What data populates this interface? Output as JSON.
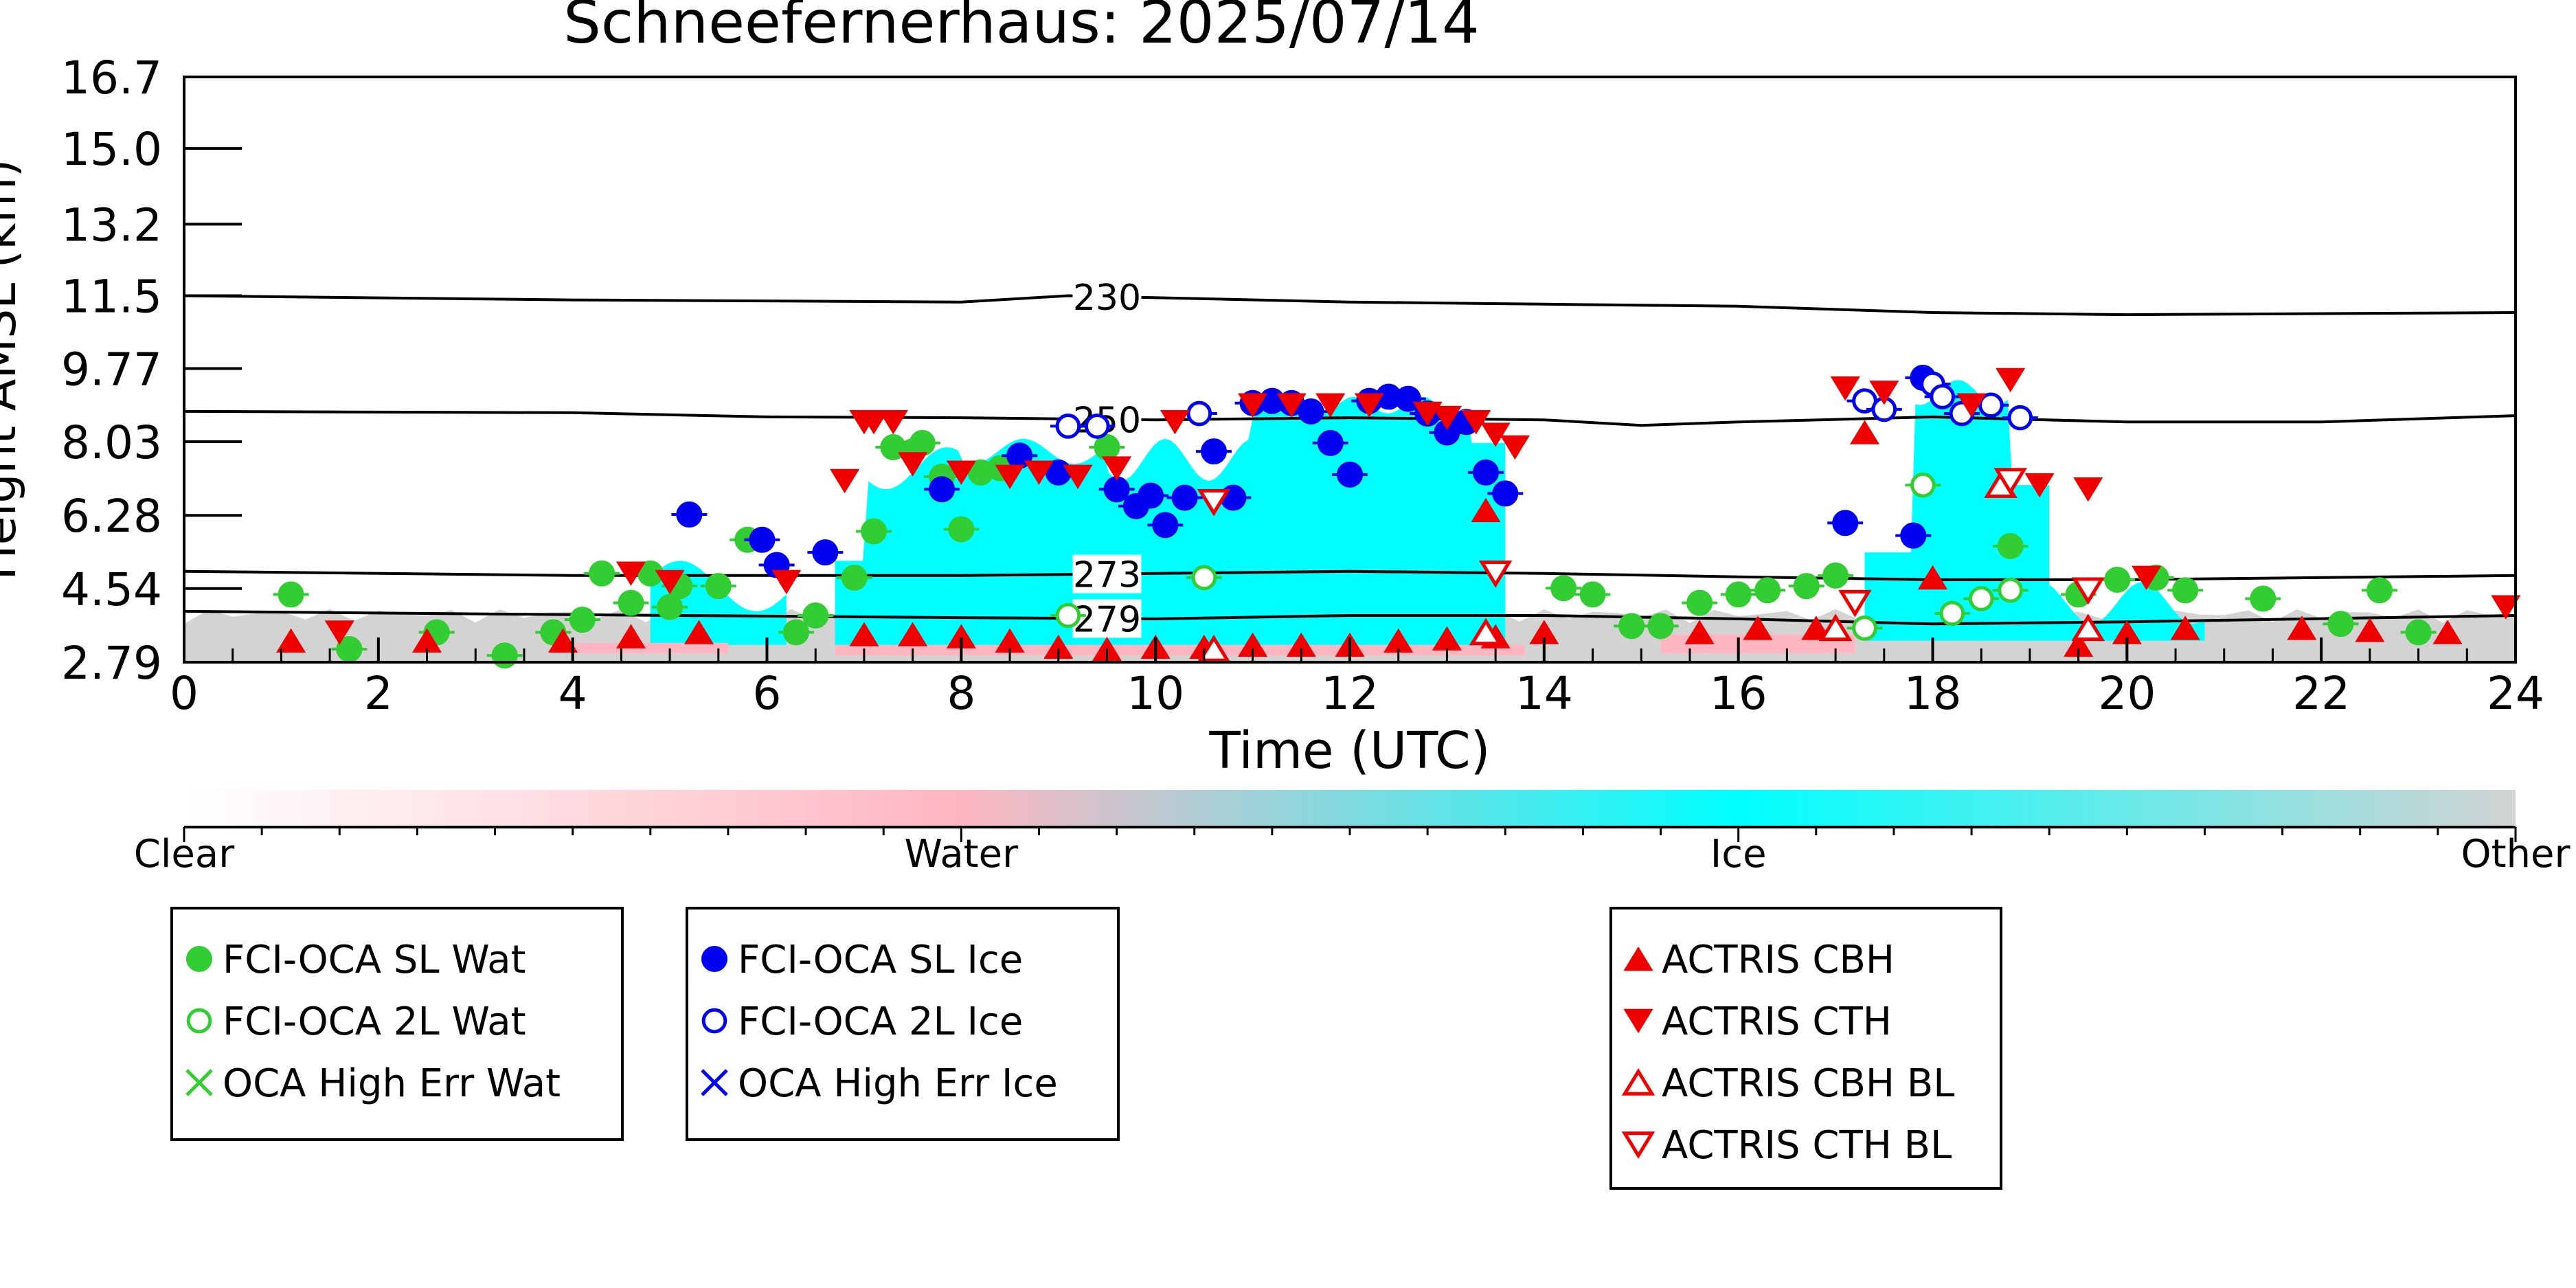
{
  "chart_data": {
    "type": "scatter",
    "title": "Schneefernerhaus: 2025/07/14",
    "xlabel": "Time (UTC)",
    "ylabel": "Height AMSL (km)",
    "xlim": [
      0,
      24
    ],
    "ylim": [
      2.79,
      16.7
    ],
    "x_ticks": [
      "0",
      "2",
      "4",
      "6",
      "8",
      "10",
      "12",
      "14",
      "16",
      "18",
      "20",
      "22",
      "24"
    ],
    "y_ticks": [
      "2.79",
      "4.54",
      "6.28",
      "8.03",
      "9.77",
      "11.5",
      "13.2",
      "15.0",
      "16.7"
    ],
    "colorbar": {
      "labels": [
        "Clear",
        "Water",
        "Ice",
        "Other"
      ],
      "colors": [
        "#ffffff",
        "#ffb6c1",
        "#00ffff",
        "#d3d3d3"
      ]
    },
    "isotherms": [
      {
        "label": "230",
        "x": [
          0,
          4,
          8,
          9.1,
          12,
          14,
          16,
          18,
          20,
          24
        ],
        "y": [
          11.5,
          11.4,
          11.35,
          11.5,
          11.35,
          11.3,
          11.25,
          11.1,
          11.05,
          11.1
        ]
      },
      {
        "label": "250",
        "x": [
          0,
          4,
          6,
          8,
          10,
          12,
          14,
          15,
          16,
          18,
          20,
          22,
          24
        ],
        "y": [
          8.75,
          8.72,
          8.62,
          8.6,
          8.55,
          8.6,
          8.55,
          8.42,
          8.5,
          8.62,
          8.5,
          8.5,
          8.65
        ]
      },
      {
        "label": "273",
        "x": [
          0,
          4,
          8,
          10,
          12,
          14,
          16,
          18,
          20,
          24
        ],
        "y": [
          4.95,
          4.85,
          4.85,
          4.9,
          4.95,
          4.9,
          4.82,
          4.75,
          4.75,
          4.85
        ]
      },
      {
        "label": "279",
        "x": [
          0,
          4,
          8,
          10,
          12,
          14,
          16,
          18,
          20,
          24
        ],
        "y": [
          4.0,
          3.92,
          3.85,
          3.82,
          3.9,
          3.9,
          3.82,
          3.7,
          3.75,
          3.9
        ]
      }
    ],
    "series": [
      {
        "name": "FCI-OCA SL Wat",
        "color": "#32cd32",
        "marker": "circle-filled",
        "x": [
          1.1,
          1.7,
          2.6,
          3.3,
          3.8,
          4.1,
          4.3,
          4.6,
          4.8,
          5.0,
          5.1,
          5.5,
          5.8,
          6.3,
          6.5,
          6.9,
          7.1,
          7.3,
          7.5,
          7.6,
          7.8,
          8.0,
          8.2,
          8.4,
          9.5,
          14.2,
          14.5,
          14.9,
          15.2,
          15.6,
          16.0,
          16.3,
          16.7,
          17.0,
          18.8,
          19.5,
          19.9,
          20.3,
          20.6,
          21.4,
          22.2,
          22.6,
          23.0
        ],
        "y": [
          4.4,
          3.1,
          3.5,
          2.95,
          3.5,
          3.8,
          4.9,
          4.2,
          4.9,
          4.1,
          4.6,
          4.6,
          5.7,
          3.5,
          3.9,
          4.8,
          5.9,
          7.9,
          7.8,
          8.0,
          7.2,
          5.95,
          7.3,
          7.4,
          7.9,
          4.55,
          4.4,
          3.65,
          3.65,
          4.2,
          4.4,
          4.5,
          4.6,
          4.85,
          5.55,
          4.4,
          4.75,
          4.8,
          4.5,
          4.3,
          3.7,
          4.5,
          3.5
        ]
      },
      {
        "name": "FCI-OCA 2L Wat",
        "color": "#32cd32",
        "marker": "circle-open",
        "x": [
          9.1,
          10.5,
          17.3,
          17.9,
          18.2,
          18.5,
          18.8
        ],
        "y": [
          3.9,
          4.8,
          3.6,
          7.0,
          3.95,
          4.3,
          4.5
        ]
      },
      {
        "name": "OCA High Err Wat",
        "color": "#32cd32",
        "marker": "x",
        "x": [],
        "y": []
      },
      {
        "name": "FCI-OCA SL Ice",
        "color": "#0000ee",
        "marker": "circle-filled",
        "x": [
          5.2,
          5.95,
          6.1,
          6.6,
          7.8,
          8.6,
          9.0,
          9.6,
          9.8,
          9.95,
          10.1,
          10.3,
          10.6,
          10.8,
          11.0,
          11.2,
          11.4,
          11.6,
          11.8,
          12.0,
          12.2,
          12.4,
          12.6,
          12.8,
          13.0,
          13.2,
          13.4,
          13.6,
          17.1,
          17.8,
          17.9
        ],
        "y": [
          6.3,
          5.7,
          5.1,
          5.4,
          6.9,
          7.7,
          7.3,
          6.9,
          6.5,
          6.75,
          6.05,
          6.7,
          7.8,
          6.7,
          8.95,
          9.0,
          8.95,
          8.75,
          8.0,
          7.25,
          9.0,
          9.1,
          9.05,
          8.7,
          8.25,
          8.5,
          7.3,
          6.8,
          6.1,
          5.8,
          9.55
        ]
      },
      {
        "name": "FCI-OCA 2L Ice",
        "color": "#0000ee",
        "marker": "circle-open",
        "x": [
          9.1,
          9.4,
          10.45,
          17.3,
          17.5,
          18.0,
          18.1,
          18.3,
          18.6,
          18.9
        ],
        "y": [
          8.4,
          8.4,
          8.7,
          9.0,
          8.8,
          9.4,
          9.1,
          8.7,
          8.9,
          8.6
        ]
      },
      {
        "name": "OCA High Err Ice",
        "color": "#0000ee",
        "marker": "x",
        "x": [],
        "y": []
      },
      {
        "name": "ACTRIS CBH",
        "color": "#ee0000",
        "marker": "triangle-up-filled",
        "x": [
          1.1,
          2.5,
          3.9,
          4.6,
          5.3,
          7.0,
          7.5,
          8.0,
          8.5,
          9.0,
          9.5,
          10.0,
          10.5,
          11.0,
          11.5,
          12.0,
          12.5,
          13.0,
          13.4,
          13.5,
          14.0,
          15.6,
          16.2,
          16.8,
          17.3,
          18.0,
          19.5,
          20.0,
          20.6,
          21.8,
          22.5,
          23.3
        ],
        "y": [
          3.3,
          3.3,
          3.3,
          3.4,
          3.5,
          3.45,
          3.45,
          3.4,
          3.3,
          3.15,
          3.1,
          3.15,
          3.15,
          3.2,
          3.2,
          3.2,
          3.3,
          3.35,
          6.4,
          3.4,
          3.5,
          3.5,
          3.6,
          3.6,
          8.25,
          4.8,
          3.2,
          3.5,
          3.6,
          3.6,
          3.55,
          3.5
        ]
      },
      {
        "name": "ACTRIS CTH",
        "color": "#ee0000",
        "marker": "triangle-down-filled",
        "x": [
          1.6,
          4.6,
          5.0,
          6.2,
          6.8,
          7.0,
          7.1,
          7.3,
          7.5,
          8.0,
          8.5,
          8.8,
          9.2,
          9.6,
          10.2,
          11.0,
          11.4,
          11.8,
          12.2,
          12.8,
          13.0,
          13.3,
          13.5,
          13.7,
          17.1,
          17.5,
          18.4,
          18.8,
          19.1,
          19.6,
          20.2,
          23.9
        ],
        "y": [
          3.5,
          4.9,
          4.7,
          4.7,
          7.1,
          8.5,
          8.5,
          8.5,
          7.5,
          7.3,
          7.2,
          7.3,
          7.2,
          7.4,
          8.5,
          8.9,
          8.9,
          8.9,
          8.9,
          8.7,
          8.6,
          8.5,
          8.2,
          7.9,
          9.3,
          9.2,
          8.9,
          9.5,
          7.0,
          6.9,
          4.8,
          4.1
        ]
      },
      {
        "name": "ACTRIS CBH BL",
        "color": "#ee0000",
        "marker": "triangle-up-open",
        "x": [
          10.6,
          13.4,
          17.0,
          18.7,
          19.6
        ],
        "y": [
          3.1,
          3.5,
          3.6,
          7.0,
          3.6
        ]
      },
      {
        "name": "ACTRIS CTH BL",
        "color": "#ee0000",
        "marker": "triangle-down-open",
        "x": [
          10.6,
          13.5,
          17.2,
          18.8,
          19.6
        ],
        "y": [
          6.6,
          4.9,
          4.2,
          7.1,
          4.5
        ]
      }
    ],
    "legend_placement": "below"
  }
}
